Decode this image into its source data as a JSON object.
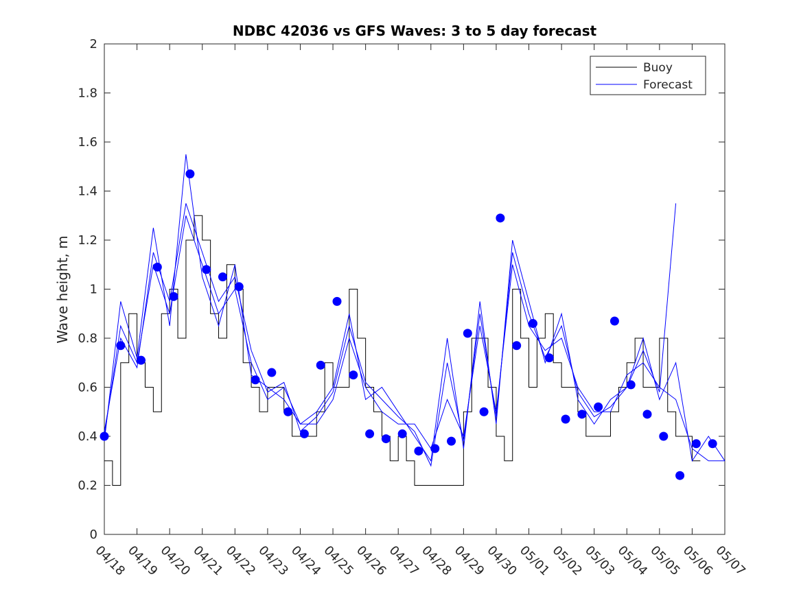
{
  "chart_data": {
    "type": "line",
    "title": "NDBC 42036 vs GFS Waves: 3 to 5 day forecast",
    "xlabel": "",
    "ylabel": "Wave height, m",
    "ylim": [
      0,
      2
    ],
    "y_ticks": [
      "0",
      "0.2",
      "0.4",
      "0.6",
      "0.8",
      "1",
      "1.2",
      "1.4",
      "1.6",
      "1.8",
      "2"
    ],
    "xlim": [
      "04/18",
      "05/07"
    ],
    "x_ticks": [
      "04/18",
      "04/19",
      "04/20",
      "04/21",
      "04/22",
      "04/23",
      "04/24",
      "04/25",
      "04/26",
      "04/27",
      "04/28",
      "04/29",
      "04/30",
      "05/01",
      "05/02",
      "05/03",
      "05/04",
      "05/05",
      "05/06",
      "05/07"
    ],
    "grid": false,
    "legend_position": "top-right",
    "legend": [
      {
        "label": "Buoy",
        "color": "#000000"
      },
      {
        "label": "Forecast",
        "color": "#0000ff"
      }
    ],
    "colors": {
      "buoy": "#000000",
      "forecast": "#0000ff"
    },
    "series": [
      {
        "name": "Buoy",
        "style": "stairs",
        "color": "#000000",
        "x": [
          "04/18 00:00",
          "04/18 06:00",
          "04/18 12:00",
          "04/18 18:00",
          "04/19 00:00",
          "04/19 06:00",
          "04/19 12:00",
          "04/19 18:00",
          "04/20 00:00",
          "04/20 06:00",
          "04/20 12:00",
          "04/20 18:00",
          "04/21 00:00",
          "04/21 06:00",
          "04/21 12:00",
          "04/21 18:00",
          "04/22 00:00",
          "04/22 06:00",
          "04/22 12:00",
          "04/22 18:00",
          "04/23 00:00",
          "04/23 06:00",
          "04/23 12:00",
          "04/23 18:00",
          "04/24 00:00",
          "04/24 06:00",
          "04/24 12:00",
          "04/24 18:00",
          "04/25 00:00",
          "04/25 06:00",
          "04/25 12:00",
          "04/25 18:00",
          "04/26 00:00",
          "04/26 06:00",
          "04/26 12:00",
          "04/26 18:00",
          "04/27 00:00",
          "04/27 06:00",
          "04/27 12:00",
          "04/27 18:00",
          "04/28 00:00",
          "04/28 06:00",
          "04/28 12:00",
          "04/28 18:00",
          "04/29 00:00",
          "04/29 06:00",
          "04/29 12:00",
          "04/29 18:00",
          "04/30 00:00",
          "04/30 06:00",
          "04/30 12:00",
          "04/30 18:00",
          "05/01 00:00",
          "05/01 06:00",
          "05/01 12:00",
          "05/01 18:00",
          "05/02 00:00",
          "05/02 06:00",
          "05/02 12:00",
          "05/02 18:00",
          "05/03 00:00",
          "05/03 06:00",
          "05/03 12:00",
          "05/03 18:00",
          "05/04 00:00",
          "05/04 06:00",
          "05/04 12:00",
          "05/04 18:00",
          "05/05 00:00",
          "05/05 06:00",
          "05/05 12:00",
          "05/05 18:00",
          "05/06 00:00",
          "05/06 06:00"
        ],
        "values": [
          0.3,
          0.2,
          0.7,
          0.9,
          0.7,
          0.6,
          0.5,
          0.9,
          1.0,
          0.8,
          1.2,
          1.3,
          1.2,
          0.9,
          0.8,
          1.1,
          1.0,
          0.7,
          0.6,
          0.5,
          0.6,
          0.6,
          0.5,
          0.4,
          0.4,
          0.4,
          0.5,
          0.7,
          0.6,
          0.6,
          1.0,
          0.8,
          0.6,
          0.5,
          0.4,
          0.3,
          0.4,
          0.3,
          0.2,
          0.2,
          0.2,
          0.2,
          0.2,
          0.2,
          0.5,
          0.8,
          0.8,
          0.6,
          0.4,
          0.3,
          1.0,
          0.8,
          0.6,
          0.8,
          0.9,
          0.7,
          0.6,
          0.6,
          0.5,
          0.4,
          0.4,
          0.4,
          0.5,
          0.6,
          0.7,
          0.8,
          0.6,
          0.6,
          0.8,
          0.5,
          0.4,
          0.4,
          0.3,
          0.3
        ]
      },
      {
        "name": "Forecast",
        "color": "#0000ff",
        "x": [
          "04/18 00:00",
          "04/18 12:00",
          "04/19 00:00",
          "04/19 12:00",
          "04/20 00:00",
          "04/20 12:00",
          "04/21 00:00",
          "04/21 12:00",
          "04/22 00:00",
          "04/22 12:00",
          "04/23 00:00",
          "04/23 12:00",
          "04/24 00:00",
          "04/24 12:00",
          "04/25 00:00",
          "04/25 12:00",
          "04/26 00:00",
          "04/26 12:00",
          "04/27 00:00",
          "04/27 12:00",
          "04/28 00:00",
          "04/28 12:00",
          "04/29 00:00",
          "04/29 12:00",
          "04/30 00:00",
          "04/30 12:00",
          "05/01 00:00",
          "05/01 12:00",
          "05/02 00:00",
          "05/02 12:00",
          "05/03 00:00",
          "05/03 12:00",
          "05/04 00:00",
          "05/04 12:00",
          "05/05 00:00",
          "05/05 12:00",
          "05/06 00:00",
          "05/06 12:00",
          "05/07 00:00"
        ],
        "values": [
          0.4,
          0.85,
          0.7,
          1.1,
          0.9,
          1.3,
          1.1,
          0.9,
          1.0,
          0.7,
          0.55,
          0.6,
          0.45,
          0.45,
          0.55,
          0.8,
          0.6,
          0.5,
          0.45,
          0.45,
          0.35,
          0.55,
          0.4,
          0.85,
          0.5,
          1.1,
          0.85,
          0.75,
          0.8,
          0.6,
          0.5,
          0.5,
          0.65,
          0.7,
          0.6,
          0.55,
          0.35,
          0.3,
          0.3
        ]
      },
      {
        "name": "Forecast",
        "color": "#0000ff",
        "x": [
          "04/18 00:00",
          "04/18 12:00",
          "04/19 00:00",
          "04/19 12:00",
          "04/20 00:00",
          "04/20 12:00",
          "04/21 00:00",
          "04/21 12:00",
          "04/22 00:00",
          "04/22 12:00",
          "04/23 00:00",
          "04/23 12:00",
          "04/24 00:00",
          "04/24 12:00",
          "04/25 00:00",
          "04/25 12:00",
          "04/26 00:00",
          "04/26 12:00",
          "04/27 00:00",
          "04/27 12:00",
          "04/28 00:00",
          "04/28 12:00",
          "04/29 00:00",
          "04/29 12:00",
          "04/30 00:00",
          "04/30 12:00",
          "05/01 00:00",
          "05/01 12:00",
          "05/02 00:00",
          "05/02 12:00",
          "05/03 00:00",
          "05/03 12:00",
          "05/04 00:00",
          "05/04 12:00",
          "05/05 00:00",
          "05/05 12:00",
          "05/06 00:00",
          "05/06 12:00",
          "05/07 00:00"
        ],
        "values": [
          0.38,
          0.95,
          0.72,
          1.25,
          0.85,
          1.55,
          1.05,
          0.85,
          1.1,
          0.65,
          0.6,
          0.55,
          0.45,
          0.5,
          0.6,
          0.9,
          0.55,
          0.6,
          0.5,
          0.4,
          0.3,
          0.8,
          0.35,
          0.95,
          0.45,
          1.2,
          0.95,
          0.7,
          0.9,
          0.55,
          0.45,
          0.55,
          0.6,
          0.8,
          0.55,
          0.7,
          0.3,
          0.4,
          0.3
        ]
      },
      {
        "name": "Forecast",
        "color": "#0000ff",
        "x": [
          "04/18 00:00",
          "04/18 12:00",
          "04/19 00:00",
          "04/19 12:00",
          "04/20 00:00",
          "04/20 12:00",
          "04/21 00:00",
          "04/21 12:00",
          "04/22 00:00",
          "04/22 12:00",
          "04/23 00:00",
          "04/23 12:00",
          "04/24 00:00",
          "04/24 12:00",
          "04/25 00:00",
          "04/25 12:00",
          "04/26 00:00",
          "04/26 12:00",
          "04/27 00:00",
          "04/27 12:00",
          "04/28 00:00",
          "04/28 12:00",
          "04/29 00:00",
          "04/29 12:00",
          "04/30 00:00",
          "04/30 12:00",
          "05/01 00:00",
          "05/01 12:00",
          "05/02 00:00",
          "05/02 12:00",
          "05/03 00:00",
          "05/03 12:00",
          "05/04 00:00",
          "05/04 12:00",
          "05/05 00:00",
          "05/05 12:00"
        ],
        "values": [
          0.42,
          0.8,
          0.68,
          1.15,
          0.95,
          1.35,
          1.15,
          0.95,
          1.05,
          0.75,
          0.58,
          0.62,
          0.42,
          0.48,
          0.58,
          0.85,
          0.62,
          0.55,
          0.48,
          0.42,
          0.28,
          0.7,
          0.38,
          0.9,
          0.48,
          1.15,
          0.9,
          0.72,
          0.85,
          0.58,
          0.48,
          0.52,
          0.6,
          0.75,
          0.58,
          1.35
        ]
      },
      {
        "name": "Forecast",
        "style": "markers",
        "color": "#0000ff",
        "x": [
          "04/18 00:00",
          "04/18 12:00",
          "04/19 03:00",
          "04/19 15:00",
          "04/20 03:00",
          "04/20 15:00",
          "04/21 03:00",
          "04/21 15:00",
          "04/22 03:00",
          "04/22 15:00",
          "04/23 03:00",
          "04/23 15:00",
          "04/24 03:00",
          "04/24 15:00",
          "04/25 03:00",
          "04/25 15:00",
          "04/26 03:00",
          "04/26 15:00",
          "04/27 03:00",
          "04/27 15:00",
          "04/28 03:00",
          "04/28 15:00",
          "04/29 03:00",
          "04/29 15:00",
          "04/30 03:00",
          "04/30 15:00",
          "05/01 03:00",
          "05/01 15:00",
          "05/02 03:00",
          "05/02 15:00",
          "05/03 03:00",
          "05/03 15:00",
          "05/04 03:00",
          "05/04 15:00",
          "05/05 03:00",
          "05/05 15:00",
          "05/06 03:00",
          "05/06 15:00"
        ],
        "values": [
          0.4,
          0.77,
          0.71,
          1.09,
          0.97,
          1.47,
          1.08,
          1.05,
          1.01,
          0.63,
          0.66,
          0.5,
          0.41,
          0.69,
          0.95,
          0.65,
          0.41,
          0.39,
          0.41,
          0.34,
          0.35,
          0.38,
          0.82,
          0.5,
          1.29,
          0.77,
          0.86,
          0.72,
          0.47,
          0.49,
          0.52,
          0.87,
          0.61,
          0.49,
          0.4,
          0.24,
          0.37,
          0.37
        ]
      }
    ]
  }
}
